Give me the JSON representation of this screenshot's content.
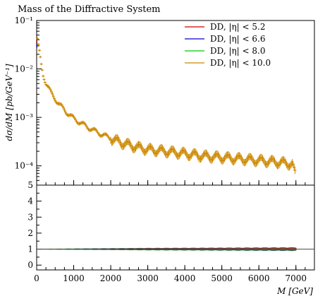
{
  "chart_data": {
    "type": "scatter",
    "title": "Mass of the Diffractive System",
    "xlabel": "M [GeV]",
    "ylabel": "dσ/dM [pb/GeV⁻¹]",
    "xlim": [
      0,
      7500
    ],
    "ylim": [
      4e-05,
      0.1
    ],
    "yscale": "log",
    "x_ticks": [
      "0",
      "1000",
      "2000",
      "3000",
      "4000",
      "5000",
      "6000",
      "7000"
    ],
    "y_ticks": [
      "10⁻¹",
      "10⁻²",
      "10⁻³",
      "10⁻⁴"
    ],
    "legend": "top-right",
    "series": [
      {
        "name": "DD, |η| < 5.2",
        "color": "#cc0000"
      },
      {
        "name": "DD, |η| < 6.6",
        "color": "#0000cc"
      },
      {
        "name": "DD, |η| < 8.0",
        "color": "#00cc00"
      },
      {
        "name": "DD, |η| < 10.0",
        "color": "#cc8800"
      }
    ],
    "main_points": {
      "x": [
        25,
        75,
        125,
        175,
        250,
        400,
        600,
        800,
        1000,
        1250,
        1500,
        1750,
        2000,
        2250,
        2500,
        2750,
        3000,
        3500,
        4000,
        4500,
        5000,
        5500,
        6000,
        6500,
        6900,
        6975
      ],
      "y": [
        0.04,
        0.022,
        0.012,
        0.0075,
        0.0052,
        0.0031,
        0.0019,
        0.0013,
        0.00095,
        0.00072,
        0.00056,
        0.00045,
        0.00037,
        0.00031,
        0.00027,
        0.00024,
        0.00022,
        0.0002,
        0.00018,
        0.00016,
        0.00015,
        0.00014,
        0.00013,
        0.00012,
        0.00011,
        7e-05
      ]
    },
    "ratio_panel": {
      "ylim": [
        -0.3,
        5
      ],
      "y_ticks": [
        "0",
        "1",
        "2",
        "3",
        "4",
        "5"
      ],
      "reference": 1,
      "band_spread": [
        {
          "x": 0,
          "spread": 0.02
        },
        {
          "x": 1000,
          "spread": 0.04
        },
        {
          "x": 3000,
          "spread": 0.08
        },
        {
          "x": 5000,
          "spread": 0.1
        },
        {
          "x": 7000,
          "spread": 0.12
        }
      ]
    }
  }
}
